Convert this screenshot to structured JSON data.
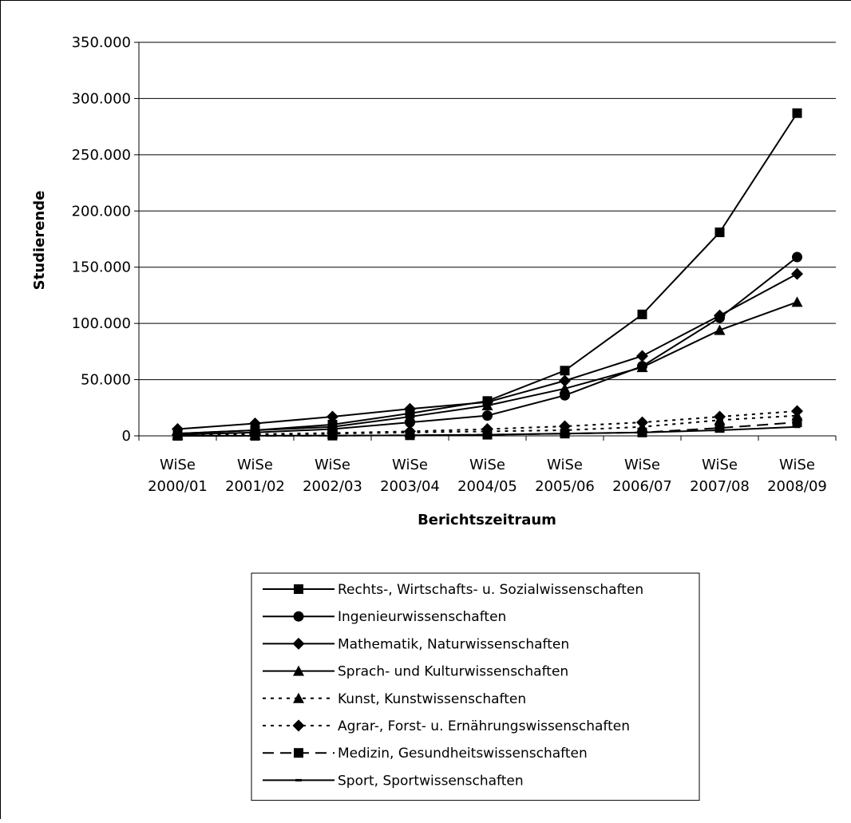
{
  "chart_data": {
    "type": "line",
    "title": "",
    "xlabel": "Berichtszeitraum",
    "ylabel": "Studierende",
    "ylim": [
      0,
      350000
    ],
    "y_ticks": [
      0,
      50000,
      100000,
      150000,
      200000,
      250000,
      300000,
      350000
    ],
    "y_tick_labels": [
      "0",
      "50.000",
      "100.000",
      "150.000",
      "200.000",
      "250.000",
      "300.000",
      "350.000"
    ],
    "grid": "horizontal",
    "legend_position": "bottom",
    "categories": [
      [
        "WiSe",
        "2000/01"
      ],
      [
        "WiSe",
        "2001/02"
      ],
      [
        "WiSe",
        "2002/03"
      ],
      [
        "WiSe",
        "2003/04"
      ],
      [
        "WiSe",
        "2004/05"
      ],
      [
        "WiSe",
        "2005/06"
      ],
      [
        "WiSe",
        "2006/07"
      ],
      [
        "WiSe",
        "2007/08"
      ],
      [
        "WiSe",
        "2008/09"
      ]
    ],
    "series": [
      {
        "name": "Rechts-, Wirtschafts- u. Sozialwissenschaften",
        "marker": "square",
        "dash": "solid",
        "values": [
          2000,
          5000,
          10000,
          20000,
          31000,
          58000,
          108000,
          181000,
          287000
        ]
      },
      {
        "name": "Ingenieurwissenschaften",
        "marker": "circle",
        "dash": "solid",
        "values": [
          1000,
          3000,
          6000,
          12000,
          18000,
          36000,
          62000,
          105000,
          159000
        ]
      },
      {
        "name": "Mathematik, Naturwissenschaften",
        "marker": "diamond",
        "dash": "solid",
        "values": [
          6000,
          11000,
          17000,
          24000,
          30000,
          49000,
          71000,
          107000,
          144000
        ]
      },
      {
        "name": "Sprach- und Kulturwissenschaften",
        "marker": "triangle",
        "dash": "solid",
        "values": [
          2000,
          5000,
          8000,
          17000,
          27000,
          42000,
          61000,
          94000,
          119000
        ]
      },
      {
        "name": "Kunst, Kunstwissenschaften",
        "marker": "triangle",
        "dash": "dotted",
        "values": [
          500,
          1000,
          2000,
          3000,
          4000,
          5000,
          8000,
          14000,
          18000
        ]
      },
      {
        "name": "Agrar-, Forst- u. Ernährungswissenschaften",
        "marker": "diamond",
        "dash": "dotted",
        "values": [
          1000,
          1500,
          2500,
          4000,
          6000,
          8500,
          12000,
          17000,
          22000
        ]
      },
      {
        "name": "Medizin, Gesundheitswissenschaften",
        "marker": "square",
        "dash": "dashed",
        "values": [
          0,
          0,
          200,
          500,
          1000,
          2000,
          3000,
          7000,
          12000
        ]
      },
      {
        "name": "Sport, Sportwissenschaften",
        "marker": "dash",
        "dash": "solid",
        "values": [
          0,
          100,
          200,
          500,
          1000,
          2000,
          3000,
          5000,
          8000
        ]
      }
    ]
  }
}
